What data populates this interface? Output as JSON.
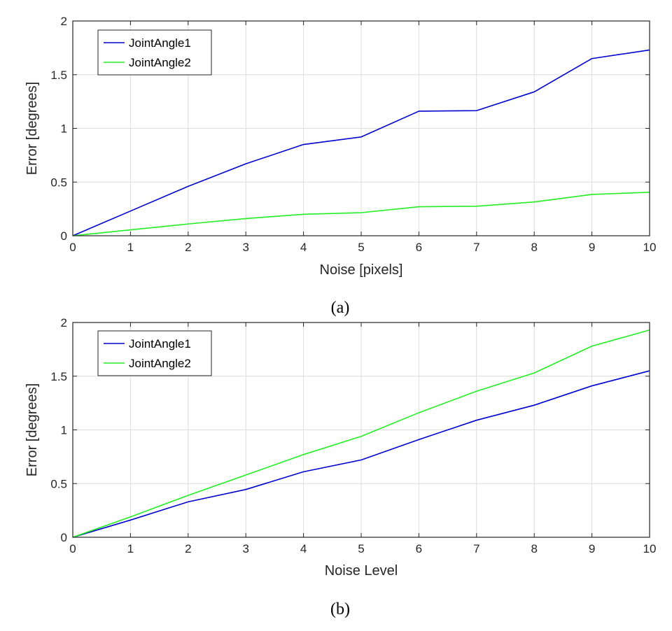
{
  "chart_data": [
    {
      "type": "line",
      "caption": "(a)",
      "xlabel": "Noise [pixels]",
      "ylabel": "Error [degrees]",
      "xlim": [
        0,
        10
      ],
      "ylim": [
        0,
        2
      ],
      "xticks": [
        "0",
        "1",
        "2",
        "3",
        "4",
        "5",
        "6",
        "7",
        "8",
        "9",
        "10"
      ],
      "yticks": [
        "0",
        "0.5",
        "1",
        "1.5",
        "2"
      ],
      "grid": true,
      "legend_position": "top-left",
      "x": [
        0,
        1,
        2,
        3,
        4,
        5,
        6,
        7,
        8,
        9,
        10
      ],
      "series": [
        {
          "name": "JointAngle1",
          "color": "#0000d0",
          "values": [
            0,
            0.23,
            0.46,
            0.67,
            0.85,
            0.92,
            1.16,
            1.165,
            1.34,
            1.65,
            1.73
          ]
        },
        {
          "name": "JointAngle2",
          "color": "#22ee22",
          "values": [
            0,
            0.055,
            0.11,
            0.16,
            0.2,
            0.215,
            0.27,
            0.275,
            0.315,
            0.385,
            0.405
          ]
        }
      ]
    },
    {
      "type": "line",
      "caption": "(b)",
      "xlabel": "Noise Level",
      "ylabel": "Error [degrees]",
      "xlim": [
        0,
        10
      ],
      "ylim": [
        0,
        2
      ],
      "xticks": [
        "0",
        "1",
        "2",
        "3",
        "4",
        "5",
        "6",
        "7",
        "8",
        "9",
        "10"
      ],
      "yticks": [
        "0",
        "0.5",
        "1",
        "1.5",
        "2"
      ],
      "grid": true,
      "legend_position": "top-left",
      "x": [
        0,
        1,
        2,
        3,
        4,
        5,
        6,
        7,
        8,
        9,
        10
      ],
      "series": [
        {
          "name": "JointAngle1",
          "color": "#0000d0",
          "values": [
            0,
            0.16,
            0.33,
            0.445,
            0.61,
            0.72,
            0.91,
            1.09,
            1.23,
            1.41,
            1.55
          ]
        },
        {
          "name": "JointAngle2",
          "color": "#22ee22",
          "values": [
            0,
            0.19,
            0.39,
            0.58,
            0.77,
            0.94,
            1.16,
            1.36,
            1.53,
            1.78,
            1.93
          ]
        }
      ]
    }
  ]
}
